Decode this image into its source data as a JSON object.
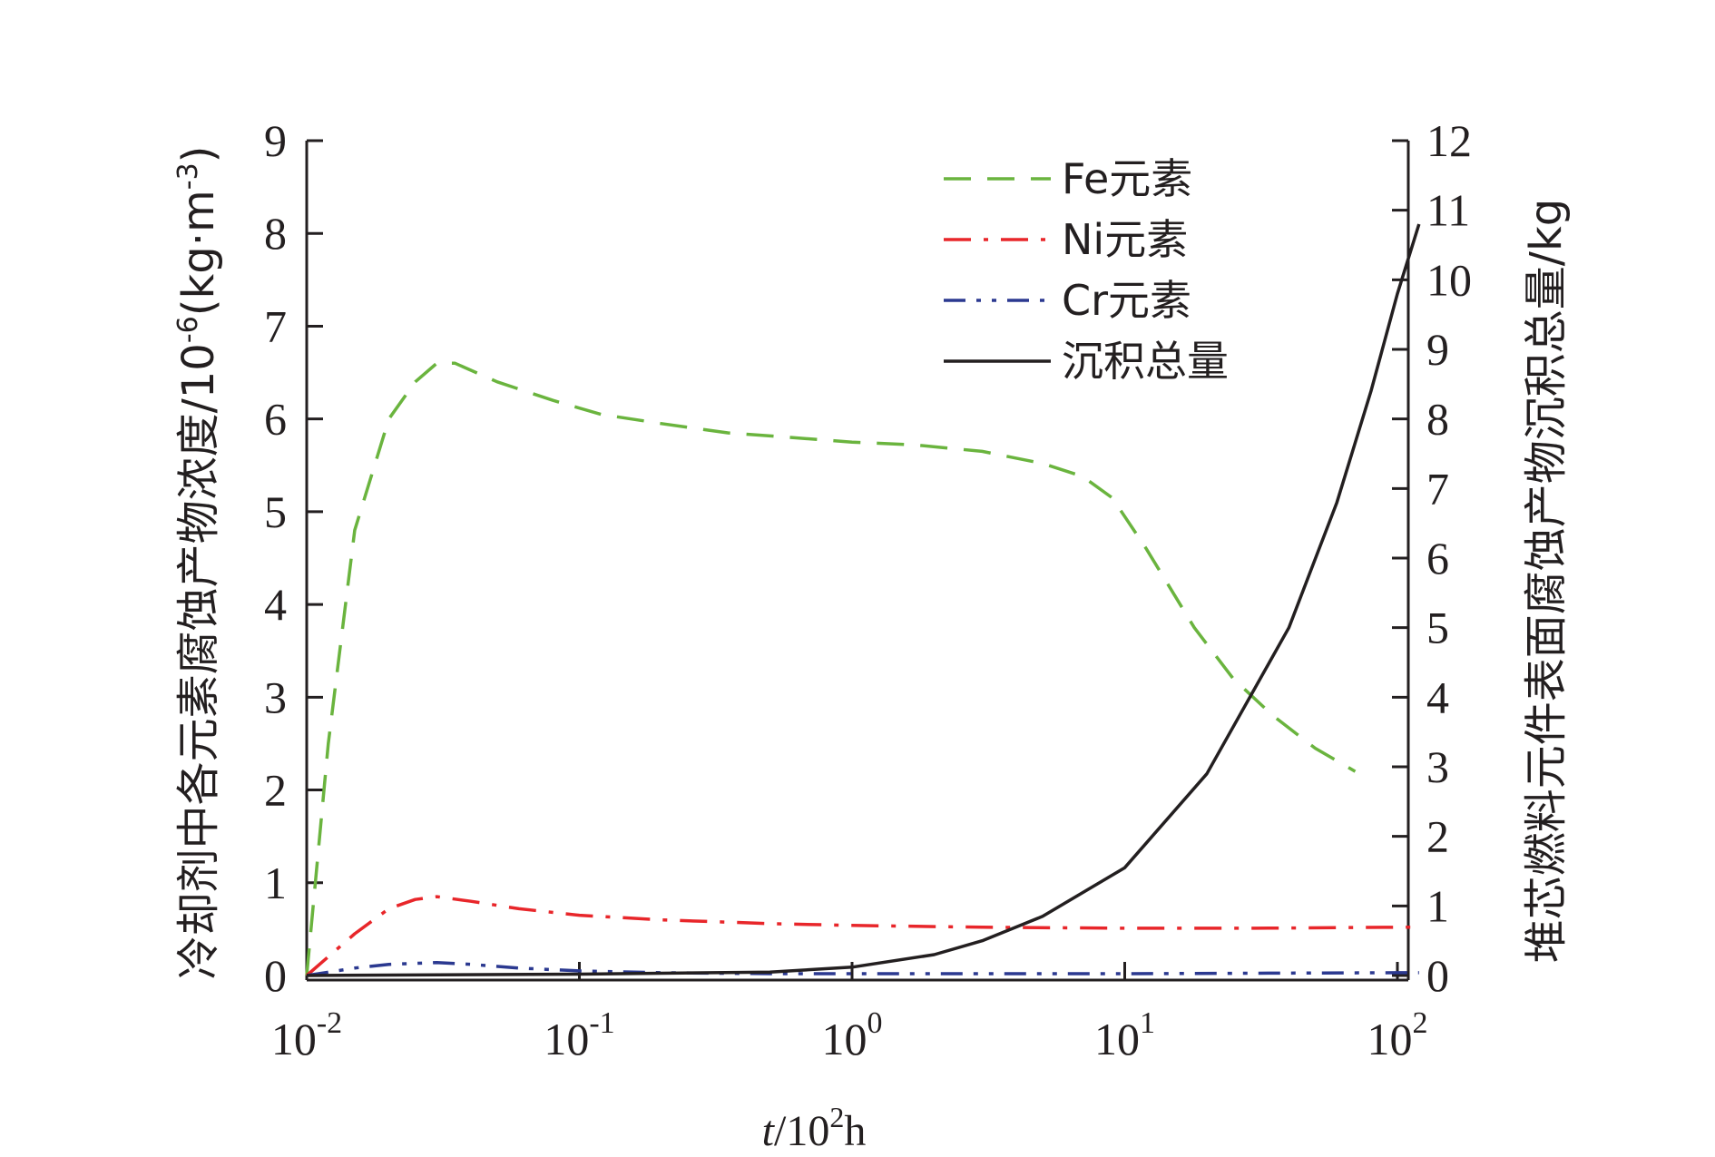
{
  "chart_data": {
    "type": "line",
    "x_scale": "log",
    "xlim": [
      0.01,
      120
    ],
    "x_ticks": [
      {
        "value": 0.01,
        "base": "10",
        "exp": "-2"
      },
      {
        "value": 0.1,
        "base": "10",
        "exp": "-1"
      },
      {
        "value": 1,
        "base": "10",
        "exp": "0"
      },
      {
        "value": 10,
        "base": "10",
        "exp": "1"
      },
      {
        "value": 100,
        "base": "10",
        "exp": "2"
      }
    ],
    "xlabel": {
      "italic": "t",
      "rest": "/10",
      "sup": "2",
      "unit": "h"
    },
    "ylabel_left": {
      "main": "冷却剂中各元素腐蚀产物浓度/10",
      "sup1": "-6",
      "mid": "(kg·m",
      "sup2": "-3",
      "end": ")"
    },
    "ylabel_right": "堆芯燃料元件表面腐蚀产物沉积总量/kg",
    "ylim_left": [
      0,
      9
    ],
    "ylim_right": [
      0,
      12
    ],
    "y_ticks_left": [
      "0",
      "1",
      "2",
      "3",
      "4",
      "5",
      "6",
      "7",
      "8",
      "9"
    ],
    "y_ticks_right": [
      "0",
      "1",
      "2",
      "3",
      "4",
      "5",
      "6",
      "7",
      "8",
      "9",
      "10",
      "11",
      "12"
    ],
    "grid": false,
    "legend_position": "top-right",
    "series": [
      {
        "name": "Fe元素",
        "axis": "left",
        "color": "#6ab43e",
        "dash": "dashed",
        "x": [
          0.01,
          0.012,
          0.015,
          0.02,
          0.025,
          0.03,
          0.035,
          0.05,
          0.08,
          0.12,
          0.2,
          0.35,
          0.6,
          1.0,
          1.7,
          3.0,
          5.0,
          7.0,
          9.0,
          12,
          18,
          25,
          35,
          50,
          70
        ],
        "y": [
          0.0,
          2.5,
          4.8,
          6.0,
          6.4,
          6.6,
          6.6,
          6.4,
          6.2,
          6.05,
          5.95,
          5.85,
          5.8,
          5.75,
          5.72,
          5.65,
          5.52,
          5.38,
          5.15,
          4.6,
          3.75,
          3.2,
          2.8,
          2.45,
          2.2
        ]
      },
      {
        "name": "Ni元素",
        "axis": "left",
        "color": "#e8262a",
        "dash": "dashdot",
        "x": [
          0.01,
          0.015,
          0.02,
          0.025,
          0.03,
          0.04,
          0.06,
          0.1,
          0.2,
          0.5,
          1,
          3,
          10,
          30,
          100,
          120
        ],
        "y": [
          0.0,
          0.45,
          0.72,
          0.82,
          0.85,
          0.8,
          0.72,
          0.65,
          0.6,
          0.56,
          0.54,
          0.52,
          0.51,
          0.51,
          0.52,
          0.52
        ]
      },
      {
        "name": "Cr元素",
        "axis": "left",
        "color": "#2b3990",
        "dash": "dashdotdot",
        "x": [
          0.01,
          0.015,
          0.02,
          0.03,
          0.04,
          0.06,
          0.1,
          0.2,
          0.5,
          1,
          10,
          100,
          120
        ],
        "y": [
          0.0,
          0.08,
          0.12,
          0.14,
          0.12,
          0.08,
          0.05,
          0.03,
          0.02,
          0.02,
          0.02,
          0.03,
          0.03
        ]
      },
      {
        "name": "沉积总量",
        "axis": "right",
        "color": "#231f20",
        "dash": "solid",
        "x": [
          0.01,
          0.1,
          0.5,
          1,
          2,
          3,
          5,
          10,
          20,
          40,
          60,
          80,
          100,
          120
        ],
        "y": [
          0.0,
          0.02,
          0.05,
          0.12,
          0.3,
          0.5,
          0.85,
          1.55,
          2.9,
          5.0,
          6.8,
          8.4,
          9.8,
          10.8
        ]
      }
    ]
  }
}
